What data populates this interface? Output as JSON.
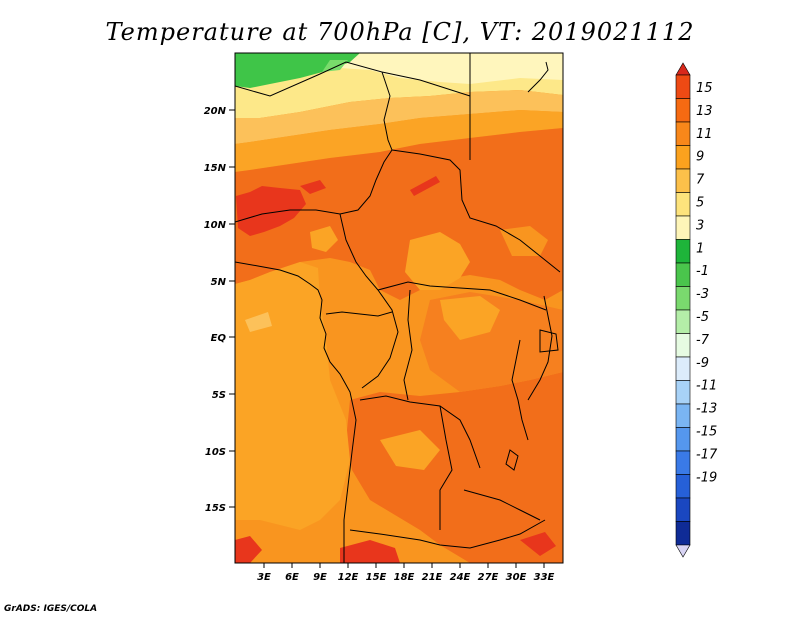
{
  "title": "Temperature at 700hPa [C], VT: 2019021112",
  "credit": "GrADS: IGES/COLA",
  "lat_ticks": [
    "20N",
    "15N",
    "10N",
    "5N",
    "EQ",
    "5S",
    "10S",
    "15S"
  ],
  "lon_ticks": [
    "3E",
    "6E",
    "9E",
    "12E",
    "15E",
    "18E",
    "21E",
    "24E",
    "27E",
    "30E",
    "33E"
  ],
  "colorbar": {
    "labels": [
      "15",
      "13",
      "11",
      "9",
      "7",
      "5",
      "3",
      "1",
      "-1",
      "-3",
      "-5",
      "-7",
      "-9",
      "-11",
      "-13",
      "-15",
      "-17",
      "-19"
    ],
    "colors": [
      "#d8281c",
      "#ee4a14",
      "#f66a12",
      "#f8871a",
      "#fba21e",
      "#fcc04a",
      "#fde37c",
      "#fef5b8",
      "#1eb53a",
      "#4ac54c",
      "#7ad96e",
      "#b4eea8",
      "#e6fbe2",
      "#dcecfb",
      "#a8d2f7",
      "#7ab5f3",
      "#5597ee",
      "#3a7ae7",
      "#2660d8",
      "#1a47c0",
      "#0f2b96",
      "#0a176e"
    ]
  },
  "colors": {
    "hot": "#e8361c",
    "warm_red": "#f05a17",
    "orange": "#f8862a",
    "light_orange": "#fba425",
    "pale_orange": "#fcc15a",
    "yellow": "#fde889",
    "pale_yellow": "#fff6bd",
    "green": "#3fc548",
    "light_green": "#79dc6b"
  }
}
